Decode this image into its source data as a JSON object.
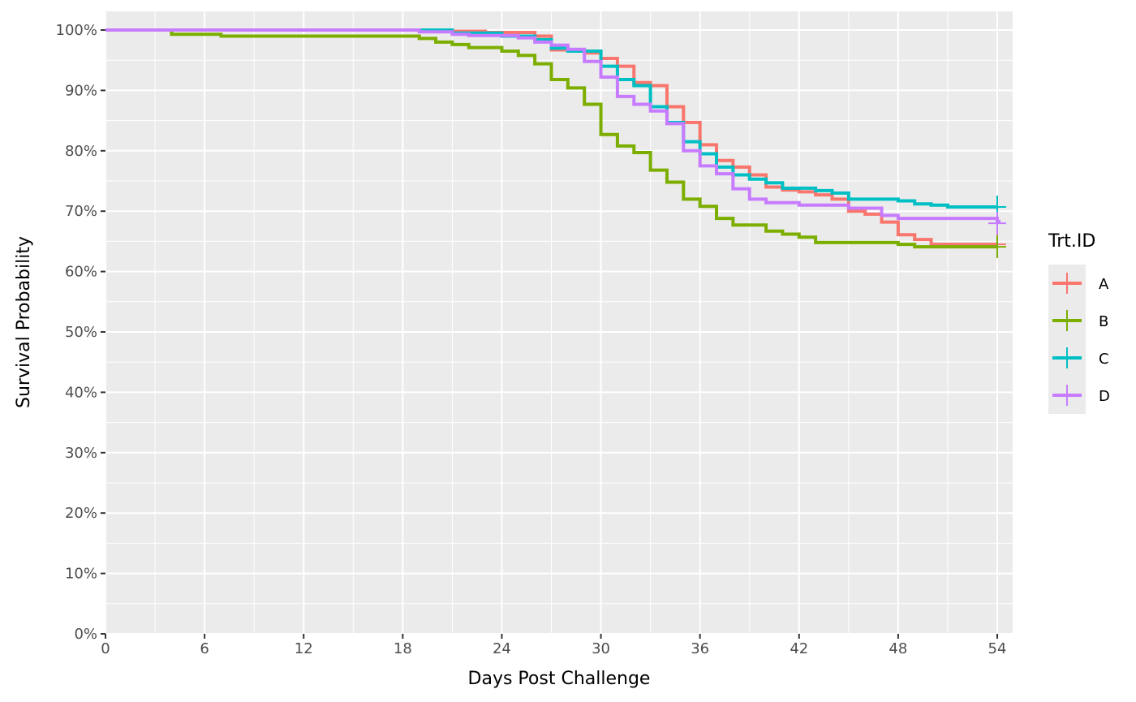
{
  "chart_data": {
    "type": "line",
    "subtype": "step (Kaplan-Meier survival curves)",
    "xlabel": "Days Post Challenge",
    "ylabel": "Survival Probability",
    "xlim": [
      0,
      54
    ],
    "ylim": [
      0,
      1
    ],
    "x_ticks": [
      0,
      6,
      12,
      18,
      24,
      30,
      36,
      42,
      48,
      54
    ],
    "x_tick_labels": [
      "0",
      "6",
      "12",
      "18",
      "24",
      "30",
      "36",
      "42",
      "48",
      "54"
    ],
    "y_ticks": [
      0,
      0.1,
      0.2,
      0.3,
      0.4,
      0.5,
      0.6,
      0.7,
      0.8,
      0.9,
      1.0
    ],
    "y_tick_labels": [
      "0%",
      "10%",
      "20%",
      "30%",
      "40%",
      "50%",
      "60%",
      "70%",
      "80%",
      "90%",
      "100%"
    ],
    "grid": true,
    "legend": {
      "title": "Trt.ID",
      "position": "right"
    },
    "series": [
      {
        "name": "A",
        "color": "#F8766D",
        "steps": [
          [
            0,
            1.0
          ],
          [
            20,
            0.998
          ],
          [
            23,
            0.996
          ],
          [
            26,
            0.99
          ],
          [
            27,
            0.967
          ],
          [
            29,
            0.962
          ],
          [
            30,
            0.953
          ],
          [
            31,
            0.94
          ],
          [
            32,
            0.913
          ],
          [
            33,
            0.908
          ],
          [
            34,
            0.873
          ],
          [
            35,
            0.847
          ],
          [
            36,
            0.81
          ],
          [
            37,
            0.784
          ],
          [
            38,
            0.773
          ],
          [
            39,
            0.76
          ],
          [
            40,
            0.74
          ],
          [
            41,
            0.735
          ],
          [
            42,
            0.732
          ],
          [
            43,
            0.727
          ],
          [
            44,
            0.72
          ],
          [
            45,
            0.7
          ],
          [
            46,
            0.695
          ],
          [
            47,
            0.682
          ],
          [
            48,
            0.661
          ],
          [
            49,
            0.653
          ],
          [
            50,
            0.645
          ],
          [
            54,
            0.645
          ]
        ],
        "censor_x": 54
      },
      {
        "name": "B",
        "color": "#7CAE00",
        "steps": [
          [
            0,
            1.0
          ],
          [
            4,
            0.993
          ],
          [
            7,
            0.99
          ],
          [
            18,
            0.99
          ],
          [
            19,
            0.986
          ],
          [
            20,
            0.98
          ],
          [
            21,
            0.976
          ],
          [
            22,
            0.971
          ],
          [
            24,
            0.965
          ],
          [
            25,
            0.958
          ],
          [
            26,
            0.944
          ],
          [
            27,
            0.918
          ],
          [
            28,
            0.904
          ],
          [
            29,
            0.877
          ],
          [
            30,
            0.827
          ],
          [
            31,
            0.808
          ],
          [
            32,
            0.797
          ],
          [
            33,
            0.768
          ],
          [
            34,
            0.748
          ],
          [
            35,
            0.72
          ],
          [
            36,
            0.708
          ],
          [
            37,
            0.688
          ],
          [
            38,
            0.677
          ],
          [
            40,
            0.667
          ],
          [
            41,
            0.662
          ],
          [
            42,
            0.657
          ],
          [
            43,
            0.648
          ],
          [
            48,
            0.645
          ],
          [
            49,
            0.641
          ],
          [
            54,
            0.641
          ]
        ],
        "censor_x": 54
      },
      {
        "name": "C",
        "color": "#00BFC4",
        "steps": [
          [
            0,
            1.0
          ],
          [
            21,
            0.995
          ],
          [
            24,
            0.99
          ],
          [
            26,
            0.984
          ],
          [
            27,
            0.97
          ],
          [
            28,
            0.965
          ],
          [
            30,
            0.94
          ],
          [
            31,
            0.918
          ],
          [
            32,
            0.908
          ],
          [
            33,
            0.873
          ],
          [
            34,
            0.847
          ],
          [
            35,
            0.815
          ],
          [
            36,
            0.795
          ],
          [
            37,
            0.773
          ],
          [
            38,
            0.76
          ],
          [
            39,
            0.753
          ],
          [
            40,
            0.747
          ],
          [
            41,
            0.738
          ],
          [
            43,
            0.734
          ],
          [
            44,
            0.73
          ],
          [
            45,
            0.72
          ],
          [
            48,
            0.717
          ],
          [
            49,
            0.712
          ],
          [
            50,
            0.71
          ],
          [
            51,
            0.707
          ],
          [
            54,
            0.707
          ]
        ],
        "censor_x": 54
      },
      {
        "name": "D",
        "color": "#C77CFF",
        "steps": [
          [
            0,
            1.0
          ],
          [
            19,
            0.997
          ],
          [
            21,
            0.993
          ],
          [
            22,
            0.991
          ],
          [
            25,
            0.987
          ],
          [
            26,
            0.98
          ],
          [
            27,
            0.975
          ],
          [
            28,
            0.968
          ],
          [
            29,
            0.948
          ],
          [
            30,
            0.922
          ],
          [
            31,
            0.89
          ],
          [
            32,
            0.877
          ],
          [
            33,
            0.866
          ],
          [
            34,
            0.845
          ],
          [
            35,
            0.8
          ],
          [
            36,
            0.775
          ],
          [
            37,
            0.762
          ],
          [
            38,
            0.737
          ],
          [
            39,
            0.72
          ],
          [
            40,
            0.714
          ],
          [
            42,
            0.71
          ],
          [
            45,
            0.705
          ],
          [
            47,
            0.693
          ],
          [
            48,
            0.688
          ],
          [
            54,
            0.683
          ],
          [
            54.1,
            0.68
          ]
        ],
        "censor_x": 54
      }
    ]
  }
}
